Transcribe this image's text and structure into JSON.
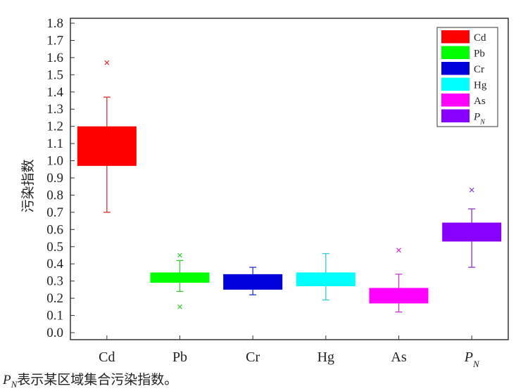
{
  "chart_data": {
    "type": "box",
    "ylabel": "污染指数",
    "ylim": [
      0.0,
      1.8
    ],
    "ytick_step": 0.1,
    "categories": [
      "Cd",
      "Pb",
      "Cr",
      "Hg",
      "As",
      "P_N"
    ],
    "category_labels": [
      "Cd",
      "Pb",
      "Cr",
      "Hg",
      "As",
      "P"
    ],
    "category_subscripts": [
      "",
      "",
      "",
      "",
      "",
      "N"
    ],
    "series": [
      {
        "name": "Cd",
        "color": "#ff0000",
        "whisker_color": "#cc3333",
        "min": 0.7,
        "q1": 0.97,
        "q3": 1.2,
        "max": 1.37,
        "outliers": [
          1.57
        ]
      },
      {
        "name": "Pb",
        "color": "#00ff00",
        "whisker_color": "#33cc33",
        "min": 0.24,
        "q1": 0.29,
        "q3": 0.35,
        "max": 0.42,
        "outliers": [
          0.15,
          0.45
        ]
      },
      {
        "name": "Cr",
        "color": "#0000dd",
        "whisker_color": "#2233cc",
        "min": 0.22,
        "q1": 0.25,
        "q3": 0.34,
        "max": 0.38,
        "outliers": []
      },
      {
        "name": "Hg",
        "color": "#00ffff",
        "whisker_color": "#33cccc",
        "min": 0.19,
        "q1": 0.27,
        "q3": 0.35,
        "max": 0.46,
        "outliers": []
      },
      {
        "name": "As",
        "color": "#ff00ff",
        "whisker_color": "#cc33cc",
        "min": 0.12,
        "q1": 0.17,
        "q3": 0.26,
        "max": 0.34,
        "outliers": [
          0.48
        ]
      },
      {
        "name": "P_N",
        "color": "#8800ff",
        "whisker_color": "#8833cc",
        "min": 0.38,
        "q1": 0.53,
        "q3": 0.64,
        "max": 0.72,
        "outliers": [
          0.83
        ]
      }
    ],
    "legend": {
      "position": "top-right",
      "entries": [
        {
          "label": "Cd",
          "sub": ""
        },
        {
          "label": "Pb",
          "sub": ""
        },
        {
          "label": "Cr",
          "sub": ""
        },
        {
          "label": "Hg",
          "sub": ""
        },
        {
          "label": "As",
          "sub": ""
        },
        {
          "label": "P",
          "sub": "N"
        }
      ]
    }
  },
  "caption": {
    "symbol": "P",
    "symbol_sub": "N",
    "text": "表示某区域集合污染指数。"
  }
}
